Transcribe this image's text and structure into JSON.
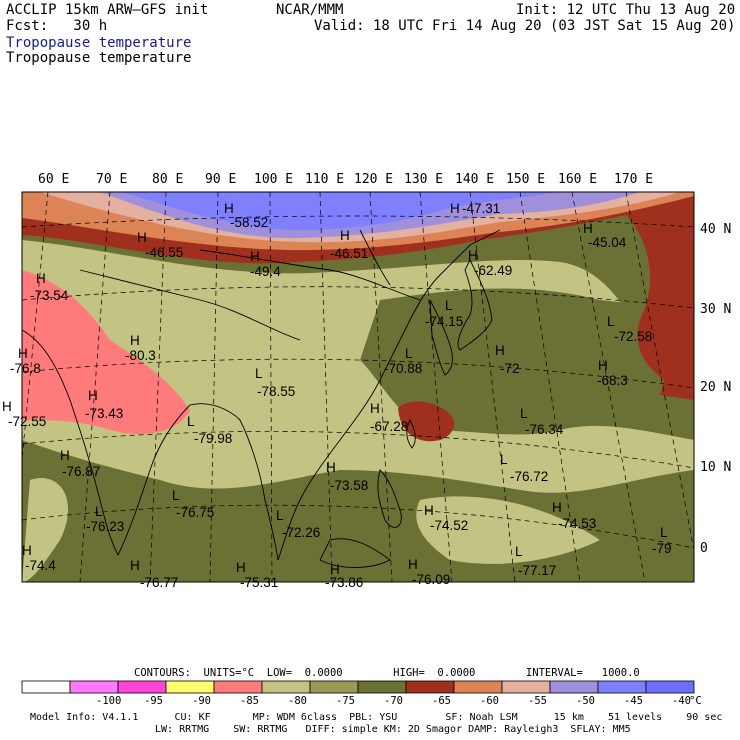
{
  "header": {
    "model": "ACCLIP 15km ARW–GFS init",
    "org": "NCAR/MMM",
    "init": "Init: 12 UTC Thu 13 Aug 20",
    "fcst": "Fcst:   30 h",
    "valid": "Valid: 18 UTC Fri 14 Aug 20 (03 JST Sat 15 Aug 20)",
    "title1": "Tropopause temperature",
    "title2": "Tropopause temperature"
  },
  "axes": {
    "lon_labels": [
      "60 E",
      "70 E",
      "80 E",
      "90 E",
      "100 E",
      "110 E",
      "120 E",
      "130 E",
      "140 E",
      "150 E",
      "160 E",
      "170 E"
    ],
    "lat_labels": [
      "40 N",
      "30 N",
      "20 N",
      "10 N",
      "0"
    ]
  },
  "map_labels": [
    {
      "type": "H",
      "value": "-58.52"
    },
    {
      "type": "H",
      "value": "-47.31"
    },
    {
      "type": "H",
      "value": "-46.55"
    },
    {
      "type": "H",
      "value": "-46.51"
    },
    {
      "type": "H",
      "value": "-45.04"
    },
    {
      "type": "H",
      "value": "-49.4"
    },
    {
      "type": "H",
      "value": "-62.49"
    },
    {
      "type": "H",
      "value": "-73.54"
    },
    {
      "type": "L",
      "value": "-74.15"
    },
    {
      "type": "L",
      "value": "-72.58"
    },
    {
      "type": "H",
      "value": "-80.3"
    },
    {
      "type": "L",
      "value": "-70.88"
    },
    {
      "type": "H",
      "value": "-72"
    },
    {
      "type": "H",
      "value": "-68.3"
    },
    {
      "type": "L",
      "value": "-78.55"
    },
    {
      "type": "H",
      "value": "-76.8"
    },
    {
      "type": "H",
      "value": "-73.43"
    },
    {
      "type": "H",
      "value": "-67.28"
    },
    {
      "type": "L",
      "value": "-76.34"
    },
    {
      "type": "H",
      "value": "-72.55"
    },
    {
      "type": "L",
      "value": "-79.98"
    },
    {
      "type": "H",
      "value": "-76.87"
    },
    {
      "type": "H",
      "value": "-73.58"
    },
    {
      "type": "L",
      "value": "-76.72"
    },
    {
      "type": "L",
      "value": "-76.23"
    },
    {
      "type": "L",
      "value": "-76.75"
    },
    {
      "type": "H",
      "value": "-74.52"
    },
    {
      "type": "H",
      "value": "-74.53"
    },
    {
      "type": "L",
      "value": "-72.26"
    },
    {
      "type": "L",
      "value": "-79"
    },
    {
      "type": "H",
      "value": "-74.4"
    },
    {
      "type": "L",
      "value": "-77.17"
    },
    {
      "type": "H",
      "value": "-73.86"
    },
    {
      "type": "H",
      "value": "-76.09"
    },
    {
      "type": "H",
      "value": "-76.77"
    },
    {
      "type": "H",
      "value": "-75.31"
    }
  ],
  "contours": {
    "line": "CONTOURS:  UNITS=°C  LOW=  0.0000        HIGH=  0.0000        INTERVAL=   1000.0"
  },
  "legend": {
    "unit": "°C",
    "bins": [
      {
        "color": "#ffffff",
        "label": ""
      },
      {
        "color": "#ff78ff",
        "label": "-100"
      },
      {
        "color": "#ff44d8",
        "label": "-95"
      },
      {
        "color": "#ffff6e",
        "label": "-90"
      },
      {
        "color": "#ff7a7a",
        "label": "-85"
      },
      {
        "color": "#c3c383",
        "label": "-80"
      },
      {
        "color": "#9a9a55",
        "label": "-75"
      },
      {
        "color": "#6b7034",
        "label": "-70"
      },
      {
        "color": "#a0301e",
        "label": "-65"
      },
      {
        "color": "#dc8456",
        "label": "-60"
      },
      {
        "color": "#e4b0a0",
        "label": "-55"
      },
      {
        "color": "#a090dc",
        "label": "-50"
      },
      {
        "color": "#8080ff",
        "label": "-45"
      },
      {
        "color": "#6e6eff",
        "label": "-40"
      }
    ]
  },
  "footer": {
    "line1": "Model Info: V4.1.1      CU: KF       MP: WDM 6class  PBL: YSU        SF: Noah LSM      15 km    51 levels    90 sec",
    "line2": "LW: RRTMG    SW: RRTMG   DIFF: simple KM: 2D Smagor DAMP: Rayleigh3  SFLAY: MM5"
  },
  "colors": {
    "olive_dark": "#6b7034",
    "olive_light": "#c3c383",
    "pink": "#ff7a7a",
    "brick": "#a0301e",
    "orange": "#dc8456",
    "salmon": "#e4b0a0",
    "lavender": "#a090dc",
    "blue": "#8080ff"
  }
}
